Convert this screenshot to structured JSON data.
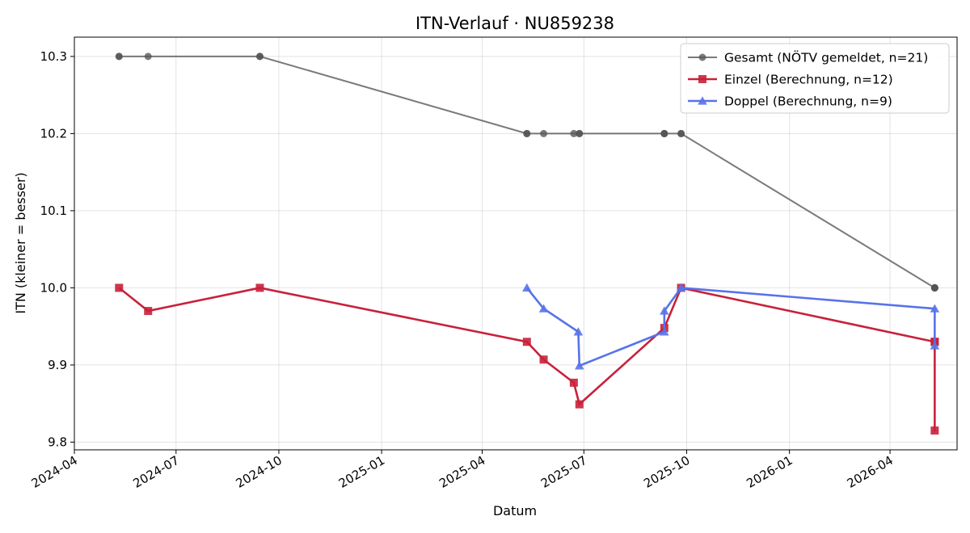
{
  "chart_data": {
    "type": "line",
    "title": "ITN-Verlauf · NU859238",
    "xlabel": "Datum",
    "ylabel": "ITN  (kleiner = besser)",
    "x_type": "date",
    "xlim": [
      "2024-04-01",
      "2026-05-31"
    ],
    "ylim": [
      9.79,
      10.325
    ],
    "x_ticks": [
      "2024-04",
      "2024-07",
      "2024-10",
      "2025-01",
      "2025-04",
      "2025-07",
      "2025-10",
      "2026-01",
      "2026-04"
    ],
    "y_ticks": [
      9.8,
      9.9,
      10.0,
      10.1,
      10.2,
      10.3
    ],
    "y_tick_labels": [
      "9.8",
      "9.9",
      "10.0",
      "10.1",
      "10.2",
      "10.3"
    ],
    "grid": true,
    "legend_position": "top-right",
    "series": [
      {
        "name": "Gesamt (NÖTV gemeldet, n=21)",
        "color": "#555555",
        "marker": "circle",
        "points": [
          {
            "x": "2024-05-11",
            "y": 10.3
          },
          {
            "x": "2024-05-11",
            "y": 10.3
          },
          {
            "x": "2024-06-06",
            "y": 10.3
          },
          {
            "x": "2024-09-14",
            "y": 10.3
          },
          {
            "x": "2024-09-14",
            "y": 10.3
          },
          {
            "x": "2025-05-11",
            "y": 10.2
          },
          {
            "x": "2025-05-11",
            "y": 10.2
          },
          {
            "x": "2025-05-26",
            "y": 10.2
          },
          {
            "x": "2025-06-22",
            "y": 10.2
          },
          {
            "x": "2025-06-27",
            "y": 10.2
          },
          {
            "x": "2025-06-27",
            "y": 10.2
          },
          {
            "x": "2025-09-11",
            "y": 10.2
          },
          {
            "x": "2025-09-11",
            "y": 10.2
          },
          {
            "x": "2025-09-11",
            "y": 10.2
          },
          {
            "x": "2025-09-26",
            "y": 10.2
          },
          {
            "x": "2025-09-26",
            "y": 10.2
          },
          {
            "x": "2026-05-11",
            "y": 10.0
          },
          {
            "x": "2026-05-11",
            "y": 10.0
          },
          {
            "x": "2026-05-11",
            "y": 10.0
          },
          {
            "x": "2026-05-11",
            "y": 10.0
          },
          {
            "x": "2026-05-11",
            "y": 10.0
          }
        ]
      },
      {
        "name": "Einzel (Berechnung, n=12)",
        "color": "#c8213b",
        "marker": "square",
        "points": [
          {
            "x": "2024-05-11",
            "y": 10.0
          },
          {
            "x": "2024-06-06",
            "y": 9.97
          },
          {
            "x": "2024-09-14",
            "y": 10.0
          },
          {
            "x": "2025-05-11",
            "y": 9.93
          },
          {
            "x": "2025-05-26",
            "y": 9.907
          },
          {
            "x": "2025-06-22",
            "y": 9.877
          },
          {
            "x": "2025-06-27",
            "y": 9.849
          },
          {
            "x": "2025-09-11",
            "y": 9.948
          },
          {
            "x": "2025-09-26",
            "y": 10.0
          },
          {
            "x": "2026-05-11",
            "y": 9.93
          },
          {
            "x": "2026-05-11",
            "y": 9.815
          },
          {
            "x": "2026-05-11",
            "y": 9.93
          }
        ]
      },
      {
        "name": "Doppel (Berechnung, n=9)",
        "color": "#5873e8",
        "marker": "triangle",
        "points": [
          {
            "x": "2025-05-11",
            "y": 10.0
          },
          {
            "x": "2025-05-26",
            "y": 9.973
          },
          {
            "x": "2025-06-26",
            "y": 9.943
          },
          {
            "x": "2025-06-27",
            "y": 9.899
          },
          {
            "x": "2025-09-11",
            "y": 9.943
          },
          {
            "x": "2025-09-11",
            "y": 9.97
          },
          {
            "x": "2025-09-26",
            "y": 10.0
          },
          {
            "x": "2026-05-11",
            "y": 9.973
          },
          {
            "x": "2026-05-11",
            "y": 9.925
          }
        ]
      }
    ]
  }
}
